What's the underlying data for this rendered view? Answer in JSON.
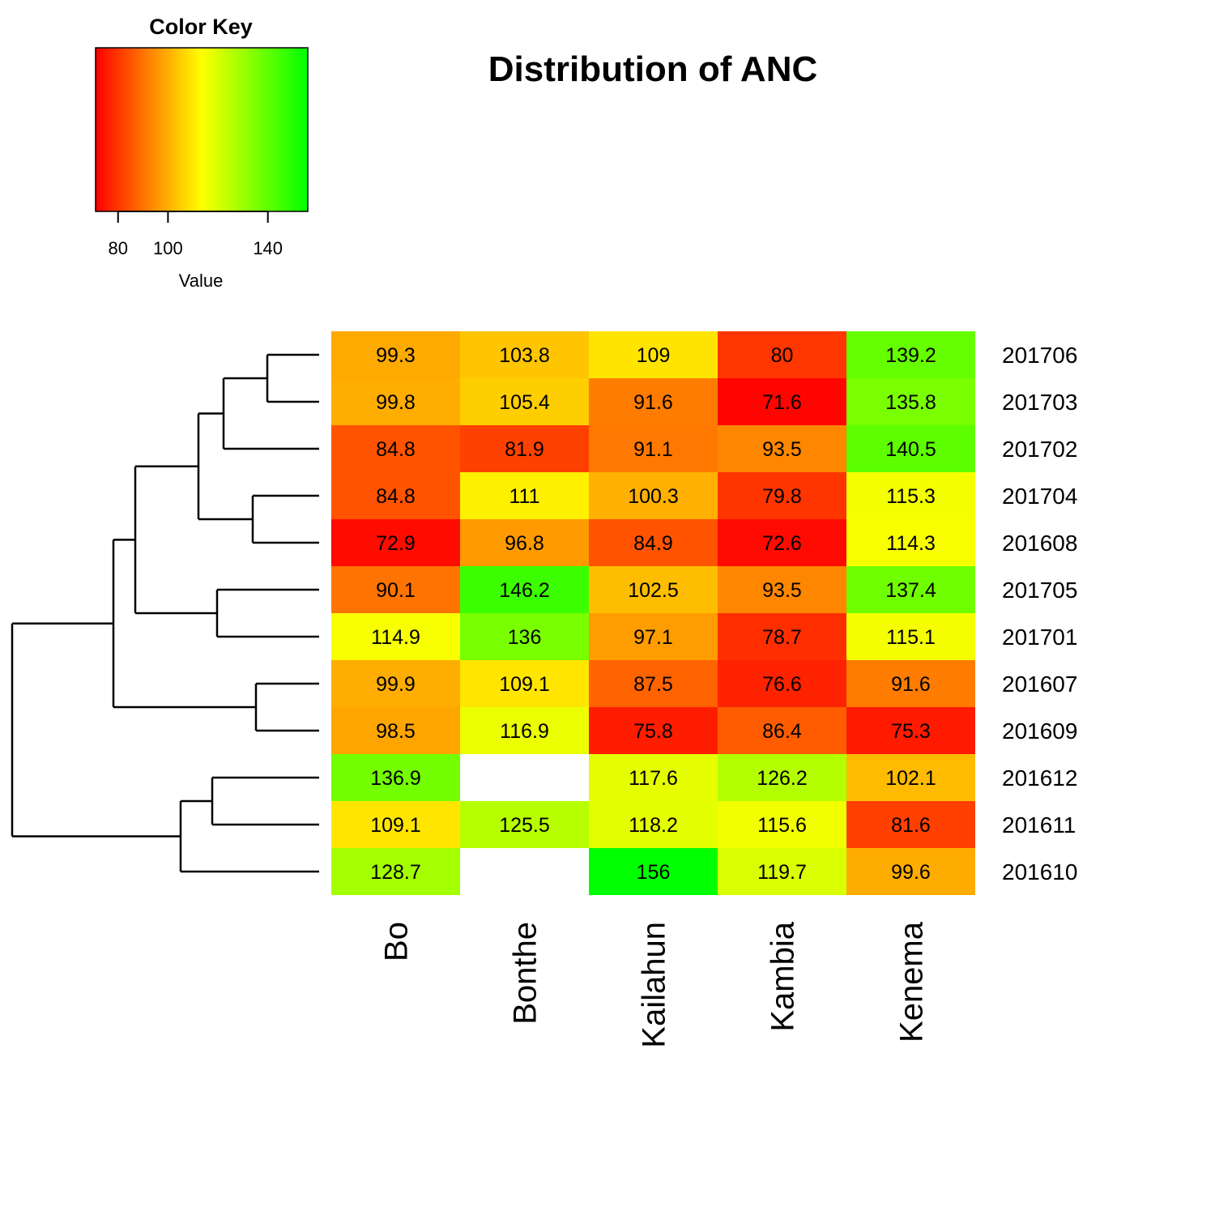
{
  "chart_data": {
    "type": "heatmap",
    "title": "Distribution of ANC",
    "columns": [
      "Bo",
      "Bonthe",
      "Kailahun",
      "Kambia",
      "Kenema"
    ],
    "rows": [
      "201706",
      "201703",
      "201702",
      "201704",
      "201608",
      "201705",
      "201701",
      "201607",
      "201609",
      "201612",
      "201611",
      "201610"
    ],
    "values": [
      [
        99.3,
        103.8,
        109,
        80,
        139.2
      ],
      [
        99.8,
        105.4,
        91.6,
        71.6,
        135.8
      ],
      [
        84.8,
        81.9,
        91.1,
        93.5,
        140.5
      ],
      [
        84.8,
        111,
        100.3,
        79.8,
        115.3
      ],
      [
        72.9,
        96.8,
        84.9,
        72.6,
        114.3
      ],
      [
        90.1,
        146.2,
        102.5,
        93.5,
        137.4
      ],
      [
        114.9,
        136,
        97.1,
        78.7,
        115.1
      ],
      [
        99.9,
        109.1,
        87.5,
        76.6,
        91.6
      ],
      [
        98.5,
        116.9,
        75.8,
        86.4,
        75.3
      ],
      [
        136.9,
        null,
        117.6,
        126.2,
        102.1
      ],
      [
        109.1,
        125.5,
        118.2,
        115.6,
        81.6
      ],
      [
        128.7,
        null,
        156,
        119.7,
        99.6
      ]
    ],
    "color_key": {
      "title": "Color Key",
      "xlabel": "Value",
      "ticks": [
        80,
        100,
        140
      ],
      "range": [
        71,
        156
      ],
      "colors": [
        "#ff0000",
        "#ffff00",
        "#00ff00"
      ]
    },
    "missing_color": "#ffffff",
    "row_dendrogram": {
      "merges": [
        [
          0,
          1
        ],
        [
          3,
          4
        ],
        [
          5,
          6
        ],
        [
          7,
          8
        ],
        [
          9,
          10
        ],
        [
          0,
          1,
          2
        ],
        [
          0,
          1,
          2,
          3,
          4
        ],
        [
          0,
          1,
          2,
          3,
          4,
          5,
          6
        ],
        [
          0,
          1,
          2,
          3,
          4,
          5,
          6,
          7,
          8
        ],
        [
          9,
          10,
          11
        ],
        [
          0,
          1,
          2,
          3,
          4,
          5,
          6,
          7,
          8,
          9,
          10,
          11
        ]
      ]
    }
  }
}
